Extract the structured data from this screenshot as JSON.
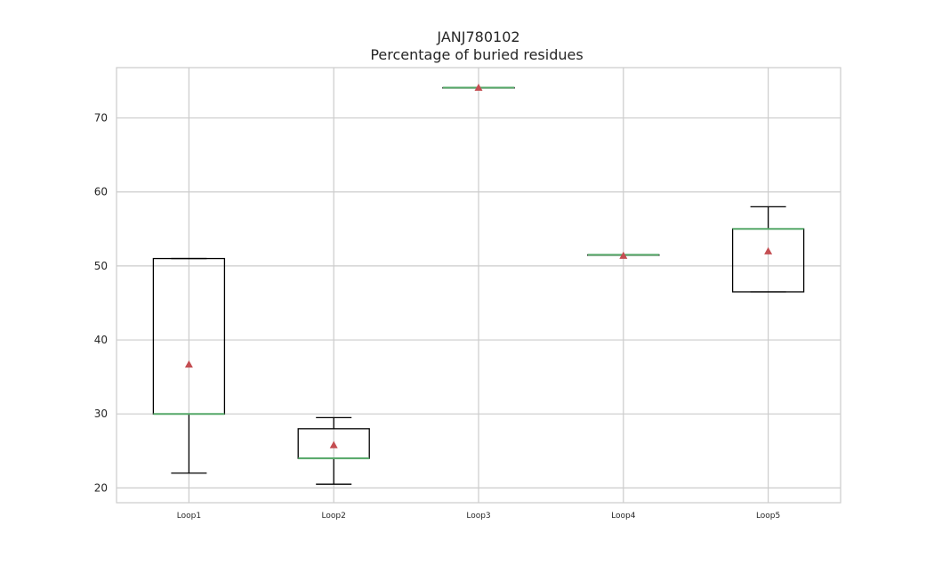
{
  "chart_data": {
    "type": "box",
    "title": "JANJ780102",
    "subtitle": "Percentage of buried residues",
    "xlabel": "",
    "ylabel": "",
    "ylim": [
      18,
      76.8
    ],
    "yticks": [
      20,
      30,
      40,
      50,
      60,
      70
    ],
    "grid": true,
    "categories": [
      "Loop1",
      "Loop2",
      "Loop3",
      "Loop4",
      "Loop5"
    ],
    "boxes": [
      {
        "label": "Loop1",
        "whislo": 22,
        "q1": 30,
        "median": 30,
        "q3": 51,
        "whishi": 51,
        "mean": 36.7
      },
      {
        "label": "Loop2",
        "whislo": 20.5,
        "q1": 24,
        "median": 24,
        "q3": 28,
        "whishi": 29.5,
        "mean": 25.8
      },
      {
        "label": "Loop3",
        "whislo": 74.1,
        "q1": 74.1,
        "median": 74.1,
        "q3": 74.1,
        "whishi": 74.1,
        "mean": 74.1
      },
      {
        "label": "Loop4",
        "whislo": 51.5,
        "q1": 51.5,
        "median": 51.5,
        "q3": 51.5,
        "whishi": 51.5,
        "mean": 51.4
      },
      {
        "label": "Loop5",
        "whislo": 46.5,
        "q1": 46.5,
        "median": 55,
        "q3": 55,
        "whishi": 58,
        "mean": 52
      }
    ],
    "colors": {
      "box": "#000000",
      "median": "#55a868",
      "mean": "#c44e52",
      "grid": "#cccccc",
      "frame": "#cccccc"
    }
  }
}
